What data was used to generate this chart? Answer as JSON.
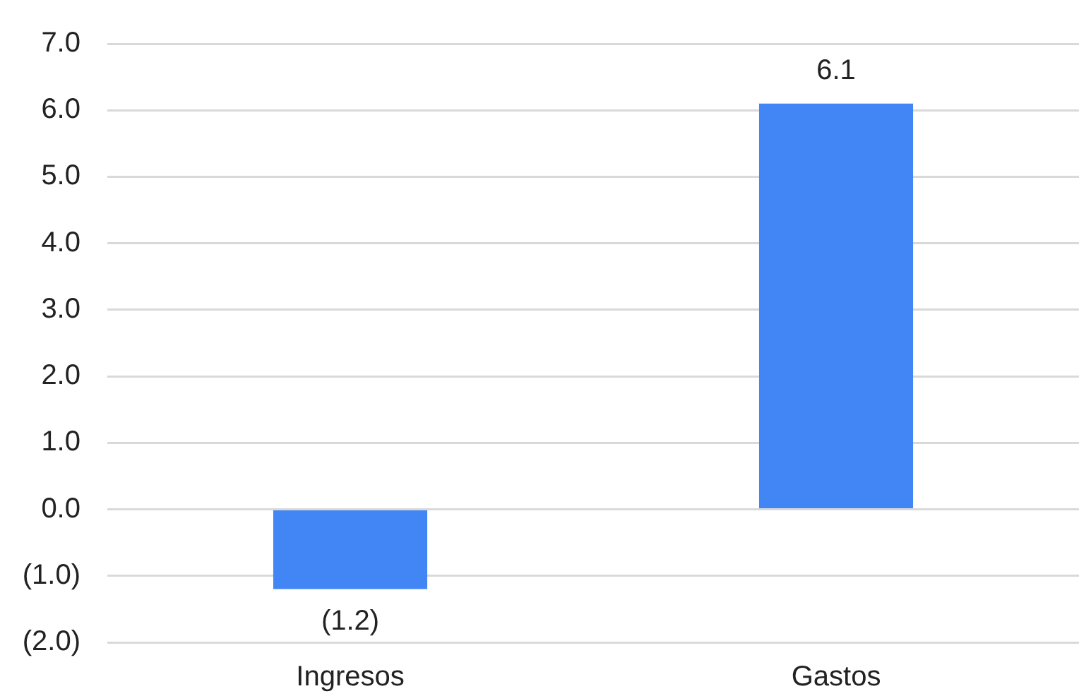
{
  "chart_data": {
    "type": "bar",
    "categories": [
      "Ingresos",
      "Gastos"
    ],
    "values": [
      -1.2,
      6.1
    ],
    "color": "#4285f4",
    "ylim": [
      -2,
      7
    ],
    "yticks": [
      {
        "value": -2,
        "label": "(2.0)"
      },
      {
        "value": -1,
        "label": "(1.0)"
      },
      {
        "value": 0,
        "label": "0.0"
      },
      {
        "value": 1,
        "label": "1.0"
      },
      {
        "value": 2,
        "label": "2.0"
      },
      {
        "value": 3,
        "label": "3.0"
      },
      {
        "value": 4,
        "label": "4.0"
      },
      {
        "value": 5,
        "label": "5.0"
      },
      {
        "value": 6,
        "label": "6.0"
      },
      {
        "value": 7,
        "label": "7.0"
      }
    ],
    "grid": "y",
    "value_labels": [
      "(1.2)",
      "6.1"
    ]
  }
}
